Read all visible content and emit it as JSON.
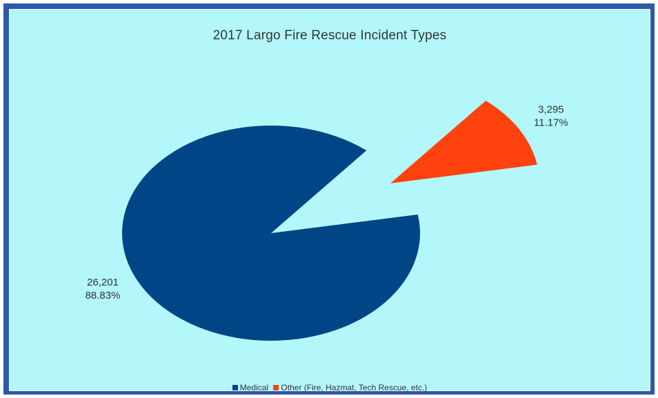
{
  "chart_data": {
    "type": "pie",
    "title": "2017 Largo Fire Rescue Incident Types",
    "slices": [
      {
        "name": "Medical",
        "value": 26201,
        "value_label": "26,201",
        "percent_label": "88.83%",
        "color": "#004586",
        "exploded": false
      },
      {
        "name": "Other (Fire, Hazmat, Tech Rescue, etc.)",
        "value": 3295,
        "value_label": "3,295",
        "percent_label": "11.17%",
        "color": "#ff420e",
        "exploded": true
      }
    ],
    "legend_position": "bottom"
  },
  "colors": {
    "background": "#b3f7fb",
    "border": "#2a5aa8"
  }
}
